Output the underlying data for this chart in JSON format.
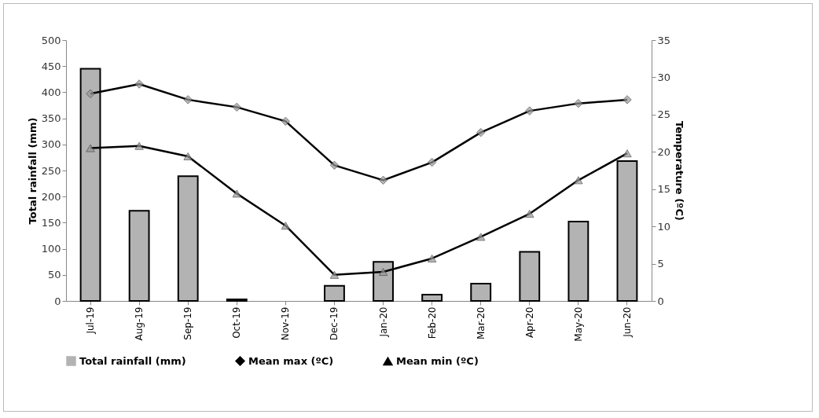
{
  "chart_data": {
    "type": "bar",
    "categories": [
      "Jul-19",
      "Aug-19",
      "Sep-19",
      "Oct-19",
      "Nov-19",
      "Dec-19",
      "Jan-20",
      "Feb-20",
      "Mar-20",
      "Apr-20",
      "May-20",
      "Jun-20"
    ],
    "ylabel": "Total rainfall (mm)",
    "y2label": "Temperature (ºC)",
    "series": [
      {
        "name": "Total rainfall (mm)",
        "color": "#b3b3b3",
        "values": [
          445,
          173,
          239,
          3,
          0,
          29,
          75,
          12,
          33,
          94,
          152,
          268
        ]
      },
      {
        "name": "Mean max (ºC)",
        "type": "line",
        "axis": "y2",
        "marker": "diamond",
        "color": "#000000",
        "values": [
          27.8,
          29.1,
          27.0,
          26.0,
          24.1,
          18.2,
          16.2,
          18.6,
          22.6,
          25.5,
          26.5,
          27.0
        ]
      },
      {
        "name": "Mean min (ºC)",
        "type": "line",
        "axis": "y2",
        "marker": "triangle",
        "color": "#000000",
        "values": [
          20.5,
          20.8,
          19.4,
          14.4,
          10.1,
          3.5,
          3.9,
          5.7,
          8.6,
          11.7,
          16.2,
          19.8
        ]
      }
    ],
    "ylim": [
      0,
      500
    ],
    "yticks": [
      0,
      50,
      100,
      150,
      200,
      250,
      300,
      350,
      400,
      450,
      500
    ],
    "y2lim": [
      0,
      35
    ],
    "y2ticks": [
      0,
      5,
      10,
      15,
      20,
      25,
      30,
      35
    ],
    "grid": false,
    "legend": "bottom"
  }
}
